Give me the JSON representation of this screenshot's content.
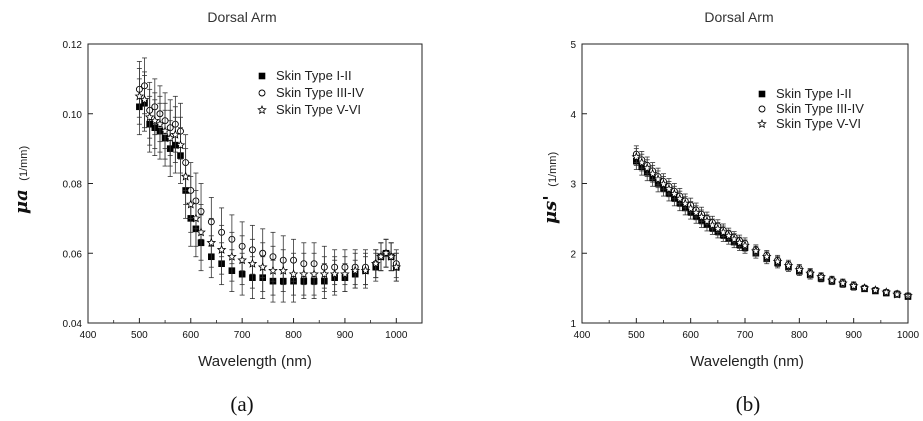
{
  "chart_data": [
    {
      "panel": "a",
      "type": "scatter",
      "title": "Dorsal Arm",
      "xlabel": "Wavelength (nm)",
      "ylabel_symbol": "μa",
      "ylabel_unit": "(1/mm)",
      "xlim": [
        400,
        1050
      ],
      "ylim": [
        0.04,
        0.12
      ],
      "xticks": [
        "400",
        "500",
        "600",
        "700",
        "800",
        "900",
        "1000"
      ],
      "yticks": [
        "0.04",
        "0.06",
        "0.08",
        "0.10",
        "0.12"
      ],
      "legend_position": "top-right",
      "caption": "(a)",
      "series": [
        {
          "name": "Skin Type I-II",
          "marker": "square",
          "x": [
            500,
            510,
            520,
            530,
            540,
            550,
            560,
            570,
            580,
            590,
            600,
            610,
            620,
            640,
            660,
            680,
            700,
            720,
            740,
            760,
            780,
            800,
            820,
            840,
            860,
            880,
            900,
            920,
            940,
            960,
            970,
            980,
            990,
            1000
          ],
          "y": [
            0.102,
            0.103,
            0.097,
            0.096,
            0.095,
            0.093,
            0.09,
            0.091,
            0.088,
            0.078,
            0.07,
            0.067,
            0.063,
            0.059,
            0.057,
            0.055,
            0.054,
            0.053,
            0.053,
            0.052,
            0.052,
            0.052,
            0.052,
            0.052,
            0.052,
            0.053,
            0.053,
            0.054,
            0.055,
            0.056,
            0.059,
            0.06,
            0.059,
            0.056
          ],
          "err": [
            0.008,
            0.008,
            0.008,
            0.008,
            0.008,
            0.008,
            0.008,
            0.008,
            0.008,
            0.008,
            0.008,
            0.008,
            0.008,
            0.006,
            0.006,
            0.006,
            0.006,
            0.006,
            0.006,
            0.006,
            0.006,
            0.006,
            0.005,
            0.005,
            0.005,
            0.005,
            0.004,
            0.004,
            0.004,
            0.004,
            0.004,
            0.004,
            0.004,
            0.004
          ]
        },
        {
          "name": "Skin Type III-IV",
          "marker": "circle",
          "x": [
            500,
            510,
            520,
            530,
            540,
            550,
            560,
            570,
            580,
            590,
            600,
            610,
            620,
            640,
            660,
            680,
            700,
            720,
            740,
            760,
            780,
            800,
            820,
            840,
            860,
            880,
            900,
            920,
            940,
            960,
            970,
            980,
            990,
            1000
          ],
          "y": [
            0.107,
            0.108,
            0.101,
            0.102,
            0.1,
            0.098,
            0.096,
            0.097,
            0.095,
            0.086,
            0.078,
            0.075,
            0.072,
            0.069,
            0.066,
            0.064,
            0.062,
            0.061,
            0.06,
            0.059,
            0.058,
            0.058,
            0.057,
            0.057,
            0.056,
            0.056,
            0.056,
            0.056,
            0.056,
            0.057,
            0.059,
            0.06,
            0.059,
            0.057
          ],
          "err": [
            0.008,
            0.008,
            0.008,
            0.008,
            0.008,
            0.008,
            0.008,
            0.008,
            0.008,
            0.008,
            0.008,
            0.008,
            0.008,
            0.007,
            0.007,
            0.007,
            0.007,
            0.007,
            0.007,
            0.007,
            0.007,
            0.006,
            0.006,
            0.006,
            0.006,
            0.005,
            0.005,
            0.005,
            0.005,
            0.004,
            0.004,
            0.004,
            0.004,
            0.004
          ]
        },
        {
          "name": "Skin Type V-VI",
          "marker": "star",
          "x": [
            500,
            510,
            520,
            530,
            540,
            550,
            560,
            570,
            580,
            590,
            600,
            610,
            620,
            640,
            660,
            680,
            700,
            720,
            740,
            760,
            780,
            800,
            820,
            840,
            860,
            880,
            900,
            920,
            940,
            960,
            970,
            980,
            990,
            1000
          ],
          "y": [
            0.105,
            0.104,
            0.099,
            0.098,
            0.097,
            0.095,
            0.093,
            0.094,
            0.091,
            0.082,
            0.074,
            0.07,
            0.066,
            0.063,
            0.061,
            0.059,
            0.058,
            0.057,
            0.056,
            0.055,
            0.055,
            0.054,
            0.054,
            0.054,
            0.054,
            0.054,
            0.054,
            0.055,
            0.055,
            0.057,
            0.059,
            0.06,
            0.059,
            0.056
          ],
          "err": [
            0.008,
            0.008,
            0.008,
            0.008,
            0.008,
            0.008,
            0.008,
            0.008,
            0.008,
            0.008,
            0.008,
            0.008,
            0.008,
            0.007,
            0.007,
            0.007,
            0.007,
            0.007,
            0.007,
            0.007,
            0.006,
            0.006,
            0.006,
            0.006,
            0.005,
            0.005,
            0.005,
            0.005,
            0.005,
            0.004,
            0.004,
            0.004,
            0.004,
            0.004
          ]
        }
      ]
    },
    {
      "panel": "b",
      "type": "scatter",
      "title": "Dorsal Arm",
      "xlabel": "Wavelength (nm)",
      "ylabel_symbol": "μs'",
      "ylabel_unit": "(1/mm)",
      "xlim": [
        400,
        1000
      ],
      "ylim": [
        1,
        5
      ],
      "xticks": [
        "400",
        "500",
        "600",
        "700",
        "800",
        "900",
        "1000"
      ],
      "yticks": [
        "1",
        "2",
        "3",
        "4",
        "5"
      ],
      "legend_position": "top-right",
      "caption": "(b)",
      "series": [
        {
          "name": "Skin Type I-II",
          "marker": "square",
          "x": [
            500,
            510,
            520,
            530,
            540,
            550,
            560,
            570,
            580,
            590,
            600,
            610,
            620,
            630,
            640,
            650,
            660,
            670,
            680,
            690,
            700,
            720,
            740,
            760,
            780,
            800,
            820,
            840,
            860,
            880,
            900,
            920,
            940,
            960,
            980,
            1000
          ],
          "y": [
            3.32,
            3.24,
            3.16,
            3.08,
            3.0,
            2.93,
            2.86,
            2.79,
            2.72,
            2.65,
            2.59,
            2.53,
            2.47,
            2.41,
            2.36,
            2.31,
            2.26,
            2.21,
            2.16,
            2.12,
            2.08,
            2.0,
            1.92,
            1.86,
            1.8,
            1.74,
            1.69,
            1.64,
            1.6,
            1.56,
            1.52,
            1.49,
            1.46,
            1.43,
            1.41,
            1.38
          ],
          "err": [
            0.12,
            0.12,
            0.12,
            0.12,
            0.12,
            0.11,
            0.11,
            0.11,
            0.11,
            0.1,
            0.1,
            0.1,
            0.1,
            0.09,
            0.09,
            0.09,
            0.09,
            0.08,
            0.08,
            0.08,
            0.08,
            0.07,
            0.07,
            0.07,
            0.06,
            0.06,
            0.06,
            0.05,
            0.05,
            0.05,
            0.05,
            0.04,
            0.04,
            0.04,
            0.04,
            0.04
          ]
        },
        {
          "name": "Skin Type III-IV",
          "marker": "circle",
          "x": [
            500,
            510,
            520,
            530,
            540,
            550,
            560,
            570,
            580,
            590,
            600,
            610,
            620,
            630,
            640,
            650,
            660,
            670,
            680,
            690,
            700,
            720,
            740,
            760,
            780,
            800,
            820,
            840,
            860,
            880,
            900,
            920,
            940,
            960,
            980,
            1000
          ],
          "y": [
            3.42,
            3.34,
            3.26,
            3.18,
            3.1,
            3.03,
            2.96,
            2.89,
            2.82,
            2.75,
            2.69,
            2.62,
            2.56,
            2.5,
            2.44,
            2.39,
            2.33,
            2.28,
            2.23,
            2.18,
            2.14,
            2.05,
            1.97,
            1.9,
            1.84,
            1.78,
            1.72,
            1.67,
            1.62,
            1.58,
            1.54,
            1.5,
            1.47,
            1.44,
            1.42,
            1.39
          ],
          "err": [
            0.12,
            0.12,
            0.12,
            0.12,
            0.12,
            0.11,
            0.11,
            0.11,
            0.11,
            0.1,
            0.1,
            0.1,
            0.1,
            0.09,
            0.09,
            0.09,
            0.09,
            0.08,
            0.08,
            0.08,
            0.08,
            0.07,
            0.07,
            0.07,
            0.06,
            0.06,
            0.06,
            0.05,
            0.05,
            0.05,
            0.05,
            0.04,
            0.04,
            0.04,
            0.04,
            0.04
          ]
        },
        {
          "name": "Skin Type V-VI",
          "marker": "star",
          "x": [
            500,
            510,
            520,
            530,
            540,
            550,
            560,
            570,
            580,
            590,
            600,
            610,
            620,
            630,
            640,
            650,
            660,
            670,
            680,
            690,
            700,
            720,
            740,
            760,
            780,
            800,
            820,
            840,
            860,
            880,
            900,
            920,
            940,
            960,
            980,
            1000
          ],
          "y": [
            3.38,
            3.3,
            3.22,
            3.14,
            3.06,
            2.99,
            2.92,
            2.85,
            2.78,
            2.71,
            2.64,
            2.58,
            2.52,
            2.46,
            2.4,
            2.35,
            2.3,
            2.25,
            2.2,
            2.15,
            2.11,
            2.03,
            1.95,
            1.88,
            1.82,
            1.76,
            1.71,
            1.66,
            1.61,
            1.57,
            1.53,
            1.5,
            1.47,
            1.44,
            1.41,
            1.39
          ],
          "err": [
            0.12,
            0.12,
            0.12,
            0.12,
            0.12,
            0.11,
            0.11,
            0.11,
            0.11,
            0.1,
            0.1,
            0.1,
            0.1,
            0.09,
            0.09,
            0.09,
            0.09,
            0.08,
            0.08,
            0.08,
            0.08,
            0.07,
            0.07,
            0.07,
            0.06,
            0.06,
            0.06,
            0.05,
            0.05,
            0.05,
            0.05,
            0.04,
            0.04,
            0.04,
            0.04,
            0.04
          ]
        }
      ]
    }
  ]
}
